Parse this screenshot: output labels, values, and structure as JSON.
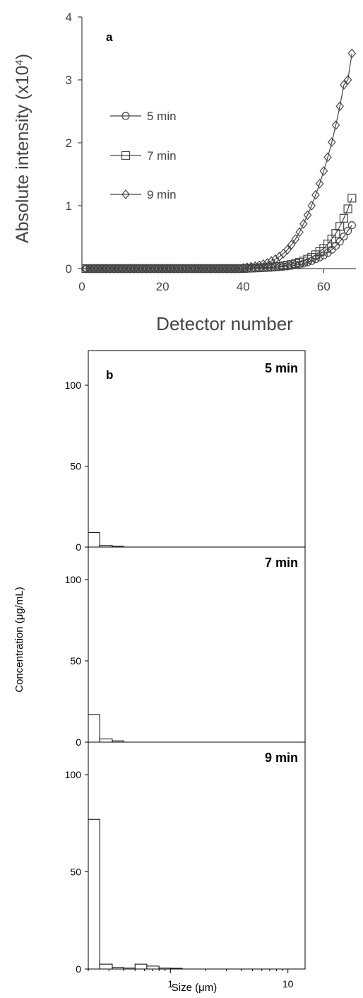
{
  "chart_data": [
    {
      "type": "line",
      "panel_label": "a",
      "xlabel": "Detector number",
      "ylabel": "Absolute intensity (x10⁴)",
      "ylabel_main": "Absolute intensity (x10",
      "ylabel_sup": "4",
      "ylabel_close": ")",
      "xlim": [
        0,
        68
      ],
      "ylim": [
        0,
        4
      ],
      "xticks": [
        0,
        20,
        40,
        60
      ],
      "yticks": [
        0,
        1,
        2,
        3,
        4
      ],
      "grid": false,
      "legend_position": "left",
      "series": [
        {
          "name": "5 min",
          "marker": "circle",
          "x": [
            1,
            2,
            3,
            4,
            5,
            6,
            7,
            8,
            9,
            10,
            11,
            12,
            13,
            14,
            15,
            16,
            17,
            18,
            19,
            20,
            21,
            22,
            23,
            24,
            25,
            26,
            27,
            28,
            29,
            30,
            31,
            32,
            33,
            34,
            35,
            36,
            37,
            38,
            39,
            40,
            41,
            42,
            43,
            44,
            45,
            46,
            47,
            48,
            49,
            50,
            51,
            52,
            53,
            54,
            55,
            56,
            57,
            58,
            59,
            60,
            61,
            62,
            63,
            64,
            65,
            66,
            67
          ],
          "y": [
            0,
            0,
            0,
            0,
            0,
            0,
            0,
            0,
            0,
            0,
            0,
            0,
            0,
            0,
            0,
            0,
            0,
            0,
            0,
            0,
            0,
            0,
            0,
            0,
            0,
            0,
            0,
            0,
            0,
            0,
            0,
            0,
            0,
            0,
            0,
            0,
            0,
            0,
            0,
            0,
            0,
            0,
            0.005,
            0.008,
            0.01,
            0.012,
            0.015,
            0.02,
            0.025,
            0.03,
            0.035,
            0.045,
            0.055,
            0.065,
            0.08,
            0.1,
            0.12,
            0.15,
            0.18,
            0.21,
            0.25,
            0.3,
            0.36,
            0.43,
            0.51,
            0.6,
            0.69
          ]
        },
        {
          "name": "7 min",
          "marker": "square",
          "x": [
            1,
            2,
            3,
            4,
            5,
            6,
            7,
            8,
            9,
            10,
            11,
            12,
            13,
            14,
            15,
            16,
            17,
            18,
            19,
            20,
            21,
            22,
            23,
            24,
            25,
            26,
            27,
            28,
            29,
            30,
            31,
            32,
            33,
            34,
            35,
            36,
            37,
            38,
            39,
            40,
            41,
            42,
            43,
            44,
            45,
            46,
            47,
            48,
            49,
            50,
            51,
            52,
            53,
            54,
            55,
            56,
            57,
            58,
            59,
            60,
            61,
            62,
            63,
            64,
            65,
            66,
            67
          ],
          "y": [
            0,
            0,
            0,
            0,
            0,
            0,
            0,
            0,
            0,
            0,
            0,
            0,
            0,
            0,
            0,
            0,
            0,
            0,
            0,
            0,
            0,
            0,
            0,
            0,
            0,
            0,
            0,
            0,
            0,
            0,
            0,
            0,
            0,
            0,
            0,
            0,
            0,
            0,
            0,
            0,
            0.005,
            0.008,
            0.01,
            0.013,
            0.016,
            0.02,
            0.025,
            0.03,
            0.036,
            0.044,
            0.054,
            0.065,
            0.08,
            0.1,
            0.12,
            0.15,
            0.18,
            0.22,
            0.27,
            0.32,
            0.39,
            0.47,
            0.56,
            0.67,
            0.8,
            0.95,
            1.12
          ]
        },
        {
          "name": "9 min",
          "marker": "diamond",
          "x": [
            1,
            2,
            3,
            4,
            5,
            6,
            7,
            8,
            9,
            10,
            11,
            12,
            13,
            14,
            15,
            16,
            17,
            18,
            19,
            20,
            21,
            22,
            23,
            24,
            25,
            26,
            27,
            28,
            29,
            30,
            31,
            32,
            33,
            34,
            35,
            36,
            37,
            38,
            39,
            40,
            41,
            42,
            43,
            44,
            45,
            46,
            47,
            48,
            49,
            50,
            51,
            52,
            53,
            54,
            55,
            56,
            57,
            58,
            59,
            60,
            61,
            62,
            63,
            64,
            65,
            66,
            67
          ],
          "y": [
            0,
            0,
            0,
            0,
            0,
            0,
            0,
            0,
            0,
            0,
            0,
            0,
            0,
            0,
            0,
            0,
            0,
            0,
            0,
            0,
            0,
            0,
            0,
            0,
            0,
            0,
            0,
            0,
            0,
            0,
            0,
            0,
            0,
            0,
            0,
            0,
            0,
            0,
            0,
            0.01,
            0.02,
            0.03,
            0.04,
            0.05,
            0.07,
            0.09,
            0.12,
            0.15,
            0.19,
            0.24,
            0.3,
            0.38,
            0.47,
            0.58,
            0.71,
            0.85,
            1.0,
            1.17,
            1.35,
            1.55,
            1.77,
            2.01,
            2.28,
            2.58,
            2.92,
            3.0,
            3.42
          ]
        }
      ]
    },
    {
      "type": "bar",
      "panel_label": "b",
      "xlabel": "Size (μm)",
      "ylabel": "Concentration (μg/mL)",
      "x_scale": "log",
      "xlim": [
        0.2,
        14
      ],
      "xticks": [
        1,
        10
      ],
      "xtick_labels": [
        "1",
        "10"
      ],
      "ylim": [
        0,
        120
      ],
      "yticks": [
        0,
        50,
        100
      ],
      "grid": false,
      "panels": [
        {
          "label": "5 min",
          "bins": [
            {
              "x0": 0.2,
              "x1": 0.25,
              "value": 9
            },
            {
              "x0": 0.25,
              "x1": 0.32,
              "value": 1
            },
            {
              "x0": 0.32,
              "x1": 0.4,
              "value": 0.5
            }
          ]
        },
        {
          "label": "7 min",
          "bins": [
            {
              "x0": 0.2,
              "x1": 0.25,
              "value": 17
            },
            {
              "x0": 0.25,
              "x1": 0.32,
              "value": 2
            },
            {
              "x0": 0.32,
              "x1": 0.4,
              "value": 0.8
            }
          ]
        },
        {
          "label": "9 min",
          "bins": [
            {
              "x0": 0.2,
              "x1": 0.25,
              "value": 77
            },
            {
              "x0": 0.25,
              "x1": 0.32,
              "value": 2.5
            },
            {
              "x0": 0.32,
              "x1": 0.4,
              "value": 0.8
            },
            {
              "x0": 0.4,
              "x1": 0.5,
              "value": 0.5
            },
            {
              "x0": 0.5,
              "x1": 0.63,
              "value": 2.5
            },
            {
              "x0": 0.63,
              "x1": 0.8,
              "value": 1.5
            },
            {
              "x0": 0.8,
              "x1": 1.0,
              "value": 0.5
            },
            {
              "x0": 1.0,
              "x1": 1.26,
              "value": 0.4
            }
          ]
        }
      ]
    }
  ]
}
